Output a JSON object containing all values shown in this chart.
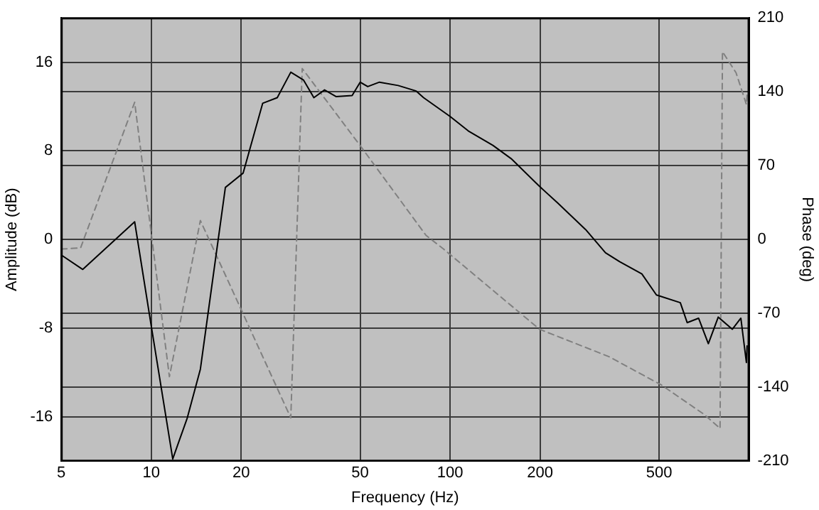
{
  "chart_data": {
    "type": "line",
    "xlabel": "Frequency (Hz)",
    "ylabel": "Amplitude (dB)",
    "y2label": "Phase (deg)",
    "log": "x",
    "grid": true,
    "legend": false,
    "marker": "none",
    "xlim": [
      5,
      1000
    ],
    "xticks": [
      5,
      10,
      20,
      50,
      100,
      200,
      500
    ],
    "ylim": [
      -20,
      20
    ],
    "yticks": [
      -16,
      -8,
      0,
      8,
      16
    ],
    "y2lim": [
      -210,
      210
    ],
    "y2ticks": [
      -210,
      -140,
      -70,
      0,
      70,
      140,
      210
    ],
    "series": [
      {
        "color": "#000000",
        "line_style": "solid",
        "x": [
          5,
          5.9,
          8.8,
          10,
          11.8,
          13.2,
          14.6,
          17.7,
          20.3,
          23.6,
          26.4,
          29.3,
          32.3,
          35,
          38,
          41.5,
          47,
          50,
          53,
          58,
          67,
          77,
          81.5,
          100,
          115,
          139,
          160,
          199,
          229,
          284,
          331,
          369,
          438,
          490,
          589,
          621,
          678,
          731,
          789,
          879,
          939,
          980,
          985
        ],
        "values": [
          -1.4,
          -2.7,
          1.6,
          -7.8,
          -19.8,
          -16.1,
          -11.7,
          4.7,
          6.0,
          12.3,
          12.8,
          15.1,
          14.4,
          12.8,
          13.5,
          12.9,
          13.0,
          14.2,
          13.8,
          14.2,
          13.9,
          13.4,
          12.8,
          11.1,
          9.8,
          8.5,
          7.3,
          4.8,
          3.3,
          0.9,
          -1.2,
          -2.0,
          -3.1,
          -5.0,
          -5.7,
          -7.5,
          -7.1,
          -9.4,
          -7.0,
          -8.1,
          -7.1,
          -11.1,
          -9.6
        ]
      },
      {
        "color": "#808080",
        "line_style": "dashed",
        "axis": "y2",
        "x": [
          5,
          5.8,
          8.8,
          11.5,
          14.6,
          29.3,
          32,
          50,
          83,
          95,
          199,
          340,
          510,
          710,
          800,
          815,
          905,
          980,
          985
        ],
        "values": [
          -9,
          -8,
          130,
          -130,
          18,
          -169,
          162,
          89,
          4,
          -9,
          -85,
          -111,
          -138,
          -166,
          -179,
          178,
          158,
          128,
          137
        ]
      }
    ]
  }
}
